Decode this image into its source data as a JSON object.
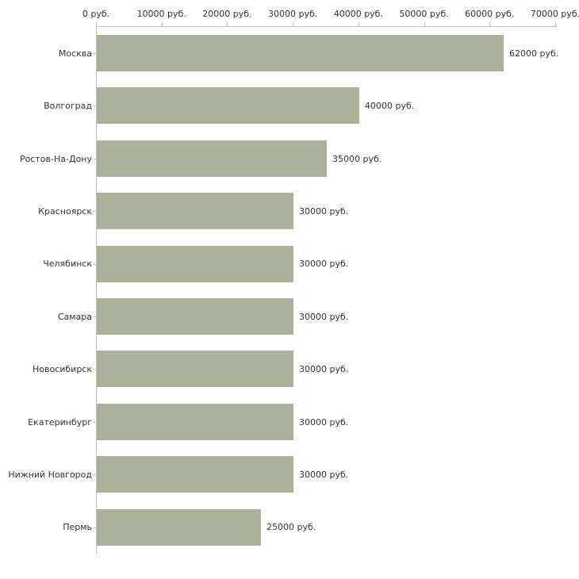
{
  "chart_data": {
    "type": "bar",
    "orientation": "horizontal",
    "title": "",
    "xlabel": "",
    "ylabel": "",
    "unit": "руб.",
    "categories": [
      "Москва",
      "Волгоград",
      "Ростов-На-Дону",
      "Красноярск",
      "Челябинск",
      "Самара",
      "Новосибирск",
      "Екатеринбург",
      "Нижний Новгород",
      "Пермь"
    ],
    "values": [
      62000,
      40000,
      35000,
      30000,
      30000,
      30000,
      30000,
      30000,
      30000,
      25000
    ],
    "value_labels": [
      "62000 руб.",
      "40000 руб.",
      "35000 руб.",
      "30000 руб.",
      "30000 руб.",
      "30000 руб.",
      "30000 руб.",
      "30000 руб.",
      "30000 руб.",
      "25000 руб."
    ],
    "x_axis": {
      "position": "top",
      "min": 0,
      "max": 70000,
      "ticks": [
        0,
        10000,
        20000,
        30000,
        40000,
        50000,
        60000,
        70000
      ],
      "tick_labels": [
        "0 руб.",
        "10000 руб.",
        "20000 руб.",
        "30000 руб.",
        "40000 руб.",
        "50000 руб.",
        "60000 руб.",
        "70000 руб."
      ]
    },
    "grid": false,
    "legend": false,
    "colors": {
      "bar": "#abb299",
      "axis_line": "#c0c0c0",
      "tick_mark": "#cccc99",
      "text": "#333333",
      "background": "#ffffff"
    }
  }
}
